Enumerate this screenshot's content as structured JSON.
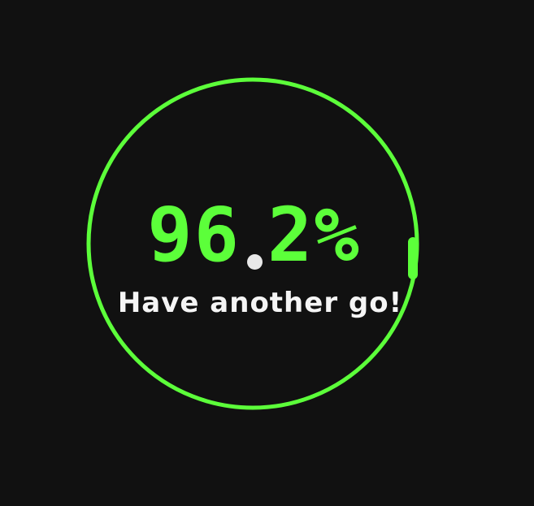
{
  "colors": {
    "background": "#111111",
    "ring": "#5cff3a",
    "score": "#5cff3a",
    "decimal_dot": "#e8e8e8",
    "message": "#f5f5f5"
  },
  "score": {
    "integer": "96",
    "fraction": "2%",
    "progress": 0.962
  },
  "message": "Have another go!"
}
